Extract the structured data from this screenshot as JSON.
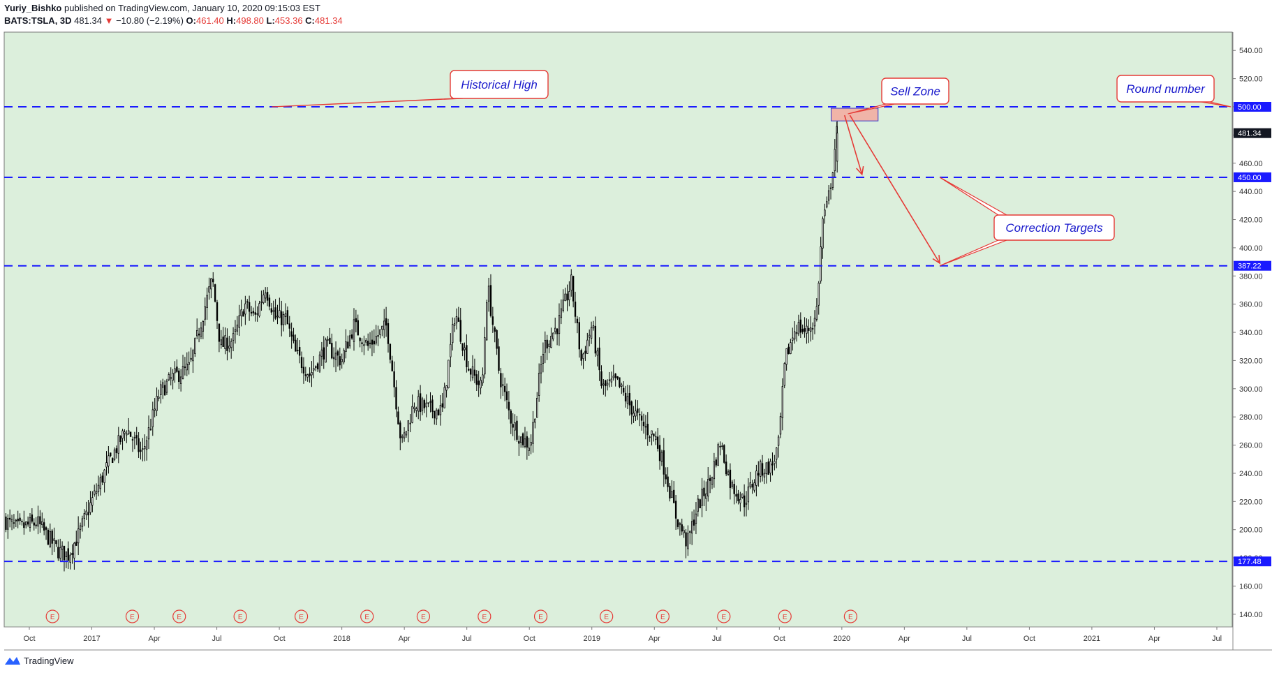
{
  "header": {
    "author": "Yuriy_Bishko",
    "published_text": "published on TradingView.com, January 10, 2020 09:15:03 EST",
    "symbol": "BATS:TSLA, 3D",
    "last": "481.34",
    "change": "−10.80 (−2.19%)",
    "o_label": "O:",
    "o_value": "461.40",
    "h_label": "H:",
    "h_value": "498.80",
    "l_label": "L:",
    "l_value": "453.36",
    "c_label": "C:",
    "c_value": "481.34"
  },
  "footer": {
    "brand": "TradingView"
  },
  "colors": {
    "plot_bg": "#dcefdc",
    "candle": "#000000",
    "level_line": "#1a1aff",
    "annotation_red": "#e53935",
    "annotation_text": "#1a1acc",
    "sell_zone_fill": "#f0b4a8",
    "sell_zone_border": "#3333cc"
  },
  "chart_data": {
    "type": "candlestick",
    "symbol": "BATS:TSLA",
    "interval": "3D",
    "y_ticks": [
      "140.00",
      "160.00",
      "180.00",
      "200.00",
      "220.00",
      "240.00",
      "260.00",
      "280.00",
      "300.00",
      "320.00",
      "340.00",
      "360.00",
      "380.00",
      "400.00",
      "420.00",
      "440.00",
      "460.00",
      "480.00",
      "500.00",
      "520.00",
      "540.00"
    ],
    "ylim": [
      131,
      553
    ],
    "x_ticks": [
      "Oct",
      "2017",
      "Apr",
      "Jul",
      "Oct",
      "2018",
      "Apr",
      "Jul",
      "Oct",
      "2019",
      "Apr",
      "Jul",
      "Oct",
      "2020",
      "Apr",
      "Jul",
      "Oct",
      "2021",
      "Apr",
      "Jul"
    ],
    "x_range": [
      "2016-08-15",
      "2021-08-20"
    ],
    "close_path": [
      [
        "2016-08-16",
        207
      ],
      [
        "2016-09-05",
        201
      ],
      [
        "2016-10-05",
        205
      ],
      [
        "2016-11-05",
        185
      ],
      [
        "2016-11-20",
        182
      ],
      [
        "2016-12-05",
        196
      ],
      [
        "2016-12-25",
        220
      ],
      [
        "2017-01-20",
        248
      ],
      [
        "2017-02-15",
        272
      ],
      [
        "2017-03-10",
        253
      ],
      [
        "2017-04-05",
        297
      ],
      [
        "2017-04-25",
        308
      ],
      [
        "2017-05-20",
        315
      ],
      [
        "2017-06-10",
        355
      ],
      [
        "2017-06-23",
        378
      ],
      [
        "2017-07-05",
        330
      ],
      [
        "2017-07-25",
        335
      ],
      [
        "2017-08-10",
        360
      ],
      [
        "2017-08-25",
        350
      ],
      [
        "2017-09-10",
        372
      ],
      [
        "2017-09-25",
        350
      ],
      [
        "2017-10-10",
        350
      ],
      [
        "2017-10-25",
        325
      ],
      [
        "2017-11-15",
        310
      ],
      [
        "2017-12-10",
        330
      ],
      [
        "2018-01-01",
        320
      ],
      [
        "2018-01-20",
        345
      ],
      [
        "2018-02-10",
        330
      ],
      [
        "2018-03-10",
        345
      ],
      [
        "2018-04-01",
        260
      ],
      [
        "2018-04-20",
        290
      ],
      [
        "2018-05-15",
        285
      ],
      [
        "2018-06-01",
        285
      ],
      [
        "2018-06-20",
        355
      ],
      [
        "2018-07-10",
        315
      ],
      [
        "2018-07-30",
        300
      ],
      [
        "2018-08-07",
        375
      ],
      [
        "2018-08-25",
        310
      ],
      [
        "2018-09-10",
        280
      ],
      [
        "2018-09-25",
        265
      ],
      [
        "2018-10-10",
        260
      ],
      [
        "2018-10-30",
        330
      ],
      [
        "2018-11-20",
        345
      ],
      [
        "2018-12-10",
        375
      ],
      [
        "2018-12-25",
        320
      ],
      [
        "2019-01-10",
        345
      ],
      [
        "2019-01-25",
        300
      ],
      [
        "2019-02-15",
        305
      ],
      [
        "2019-03-05",
        290
      ],
      [
        "2019-03-25",
        275
      ],
      [
        "2019-04-15",
        265
      ],
      [
        "2019-05-01",
        238
      ],
      [
        "2019-05-15",
        210
      ],
      [
        "2019-06-01",
        190
      ],
      [
        "2019-06-15",
        215
      ],
      [
        "2019-07-05",
        235
      ],
      [
        "2019-07-20",
        262
      ],
      [
        "2019-08-05",
        232
      ],
      [
        "2019-08-25",
        220
      ],
      [
        "2019-09-15",
        242
      ],
      [
        "2019-10-05",
        245
      ],
      [
        "2019-10-15",
        260
      ],
      [
        "2019-10-25",
        320
      ],
      [
        "2019-11-10",
        345
      ],
      [
        "2019-11-25",
        340
      ],
      [
        "2019-12-10",
        350
      ],
      [
        "2019-12-20",
        420
      ],
      [
        "2019-12-27",
        430
      ],
      [
        "2020-01-02",
        450
      ],
      [
        "2020-01-06",
        465
      ],
      [
        "2020-01-09",
        481.34
      ]
    ],
    "last_candle": {
      "date": "2020-01-09",
      "open": 461.4,
      "high": 498.8,
      "low": 453.36,
      "close": 481.34
    },
    "earnings_markers": {
      "label": "E",
      "dates": [
        "2016-10-26",
        "2017-02-22",
        "2017-05-03",
        "2017-08-02",
        "2017-11-01",
        "2018-02-07",
        "2018-05-02",
        "2018-08-01",
        "2018-10-24",
        "2019-01-30",
        "2019-04-24",
        "2019-07-24",
        "2019-10-23",
        "2020-01-29"
      ]
    },
    "levels": [
      {
        "value": 500.0,
        "label": "500.00"
      },
      {
        "value": 450.0,
        "label": "450.00"
      },
      {
        "value": 387.22,
        "label": "387.22"
      },
      {
        "value": 177.48,
        "label": "177.48"
      }
    ],
    "current_price_label": "481.34",
    "sell_zone": {
      "x_start": "2019-12-31",
      "x_end": "2020-03-10",
      "y_low": 490,
      "y_high": 499
    },
    "annotations": [
      {
        "text": "Historical High",
        "target_x": "2017-09-18",
        "target_y": 500
      },
      {
        "text": "Sell Zone",
        "target_x": "2020-01-25",
        "target_y": 495
      },
      {
        "text": "Round number",
        "target_x": "2021-08-18",
        "target_y": 500
      },
      {
        "text": "Correction Targets",
        "targets": [
          [
            "2020-06-10",
            450
          ],
          [
            "2020-06-10",
            387.22
          ]
        ]
      }
    ],
    "arrows": [
      {
        "from": [
          "2020-01-20",
          494
        ],
        "to": [
          "2020-02-15",
          452
        ]
      },
      {
        "from": [
          "2020-01-28",
          494
        ],
        "to": [
          "2020-06-10",
          389
        ]
      }
    ]
  }
}
